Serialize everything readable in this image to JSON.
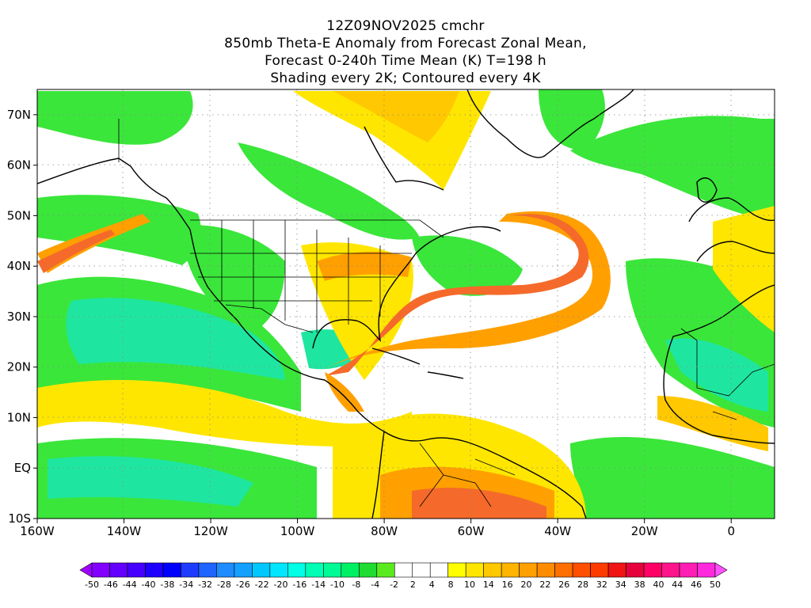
{
  "title": {
    "line1": "12Z09NOV2025 cmchr",
    "line2": "850mb Theta-E Anomaly from Forecast Zonal Mean,",
    "line3": "Forecast 0-240h Time Mean (K) T=198 h",
    "line4": "Shading every 2K; Contoured every 4K"
  },
  "map": {
    "lon_range": [
      -160,
      10
    ],
    "lat_range": [
      -10,
      75
    ],
    "x_ticks": [
      {
        "lon": -160,
        "label": "160W"
      },
      {
        "lon": -140,
        "label": "140W"
      },
      {
        "lon": -120,
        "label": "120W"
      },
      {
        "lon": -100,
        "label": "100W"
      },
      {
        "lon": -80,
        "label": "80W"
      },
      {
        "lon": -60,
        "label": "60W"
      },
      {
        "lon": -40,
        "label": "40W"
      },
      {
        "lon": -20,
        "label": "20W"
      },
      {
        "lon": 0,
        "label": "0"
      }
    ],
    "y_ticks": [
      {
        "lat": -10,
        "label": "10S"
      },
      {
        "lat": 0,
        "label": "EQ"
      },
      {
        "lat": 10,
        "label": "10N"
      },
      {
        "lat": 20,
        "label": "20N"
      },
      {
        "lat": 30,
        "label": "30N"
      },
      {
        "lat": 40,
        "label": "40N"
      },
      {
        "lat": 50,
        "label": "50N"
      },
      {
        "lat": 60,
        "label": "60N"
      },
      {
        "lat": 70,
        "label": "70N"
      }
    ],
    "colorbar_labels": [
      "-50",
      "-46",
      "-44",
      "-40",
      "-38",
      "-34",
      "-32",
      "-28",
      "-26",
      "-22",
      "-20",
      "-16",
      "-14",
      "-10",
      "-8",
      "-4",
      "-2",
      "2",
      "4",
      "8",
      "10",
      "14",
      "16",
      "20",
      "22",
      "26",
      "28",
      "32",
      "34",
      "38",
      "40",
      "44",
      "46",
      "50"
    ],
    "colorbar_colors": [
      "#a000ff",
      "#8200ff",
      "#6400ff",
      "#4600ff",
      "#1e00ff",
      "#0000ff",
      "#1e3cff",
      "#1e64ff",
      "#1e8cff",
      "#14a0ff",
      "#00c8ff",
      "#00e6ff",
      "#00ffe6",
      "#00ffb4",
      "#00fa96",
      "#00f064",
      "#1edc32",
      "#5aeb1e",
      "#ffffff",
      "#ffffff",
      "#ffffff",
      "#ffff00",
      "#ffe600",
      "#ffc800",
      "#ffb400",
      "#ffa000",
      "#ff8c00",
      "#ff6e00",
      "#ff5000",
      "#ff3c00",
      "#f01414",
      "#e6003c",
      "#ff0064",
      "#ff148c",
      "#ff1eb4",
      "#ff28dc",
      "#ff50ff"
    ],
    "fill_colors": {
      "green": "#3ae63a",
      "teal": "#1ee6a0",
      "yellow": "#ffe600",
      "gold": "#ffc800",
      "orange": "#ffa000",
      "red_orange": "#f56a2a"
    }
  }
}
